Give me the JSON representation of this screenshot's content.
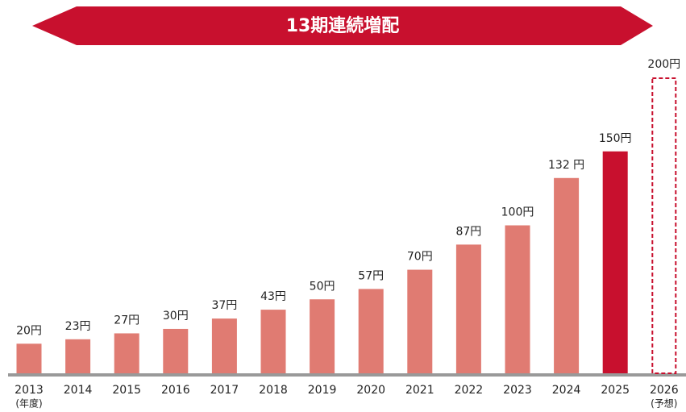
{
  "chart_data": {
    "type": "bar",
    "title": "13期連続増配",
    "categories": [
      "2013",
      "2014",
      "2015",
      "2016",
      "2017",
      "2018",
      "2019",
      "2020",
      "2021",
      "2022",
      "2023",
      "2024",
      "2025",
      "2026"
    ],
    "category_notes": [
      "(年度)",
      null,
      null,
      null,
      null,
      null,
      null,
      null,
      null,
      null,
      null,
      null,
      null,
      "(予想)"
    ],
    "values": [
      20,
      23,
      27,
      30,
      37,
      43,
      50,
      57,
      70,
      87,
      100,
      132,
      150,
      200
    ],
    "value_labels": [
      "20円",
      "23円",
      "27円",
      "30円",
      "37円",
      "43円",
      "50円",
      "57円",
      "70円",
      "87円",
      "100円",
      "132 円",
      "150円",
      "200円"
    ],
    "colors": [
      "#e07b72",
      "#e07b72",
      "#e07b72",
      "#e07b72",
      "#e07b72",
      "#e07b72",
      "#e07b72",
      "#e07b72",
      "#e07b72",
      "#e07b72",
      "#e07b72",
      "#e07b72",
      "#c8102e",
      "#c8102e"
    ],
    "bar_styles": [
      "solid",
      "solid",
      "solid",
      "solid",
      "solid",
      "solid",
      "solid",
      "solid",
      "solid",
      "solid",
      "solid",
      "solid",
      "solid",
      "dashed"
    ],
    "ylim": [
      0,
      200
    ]
  }
}
